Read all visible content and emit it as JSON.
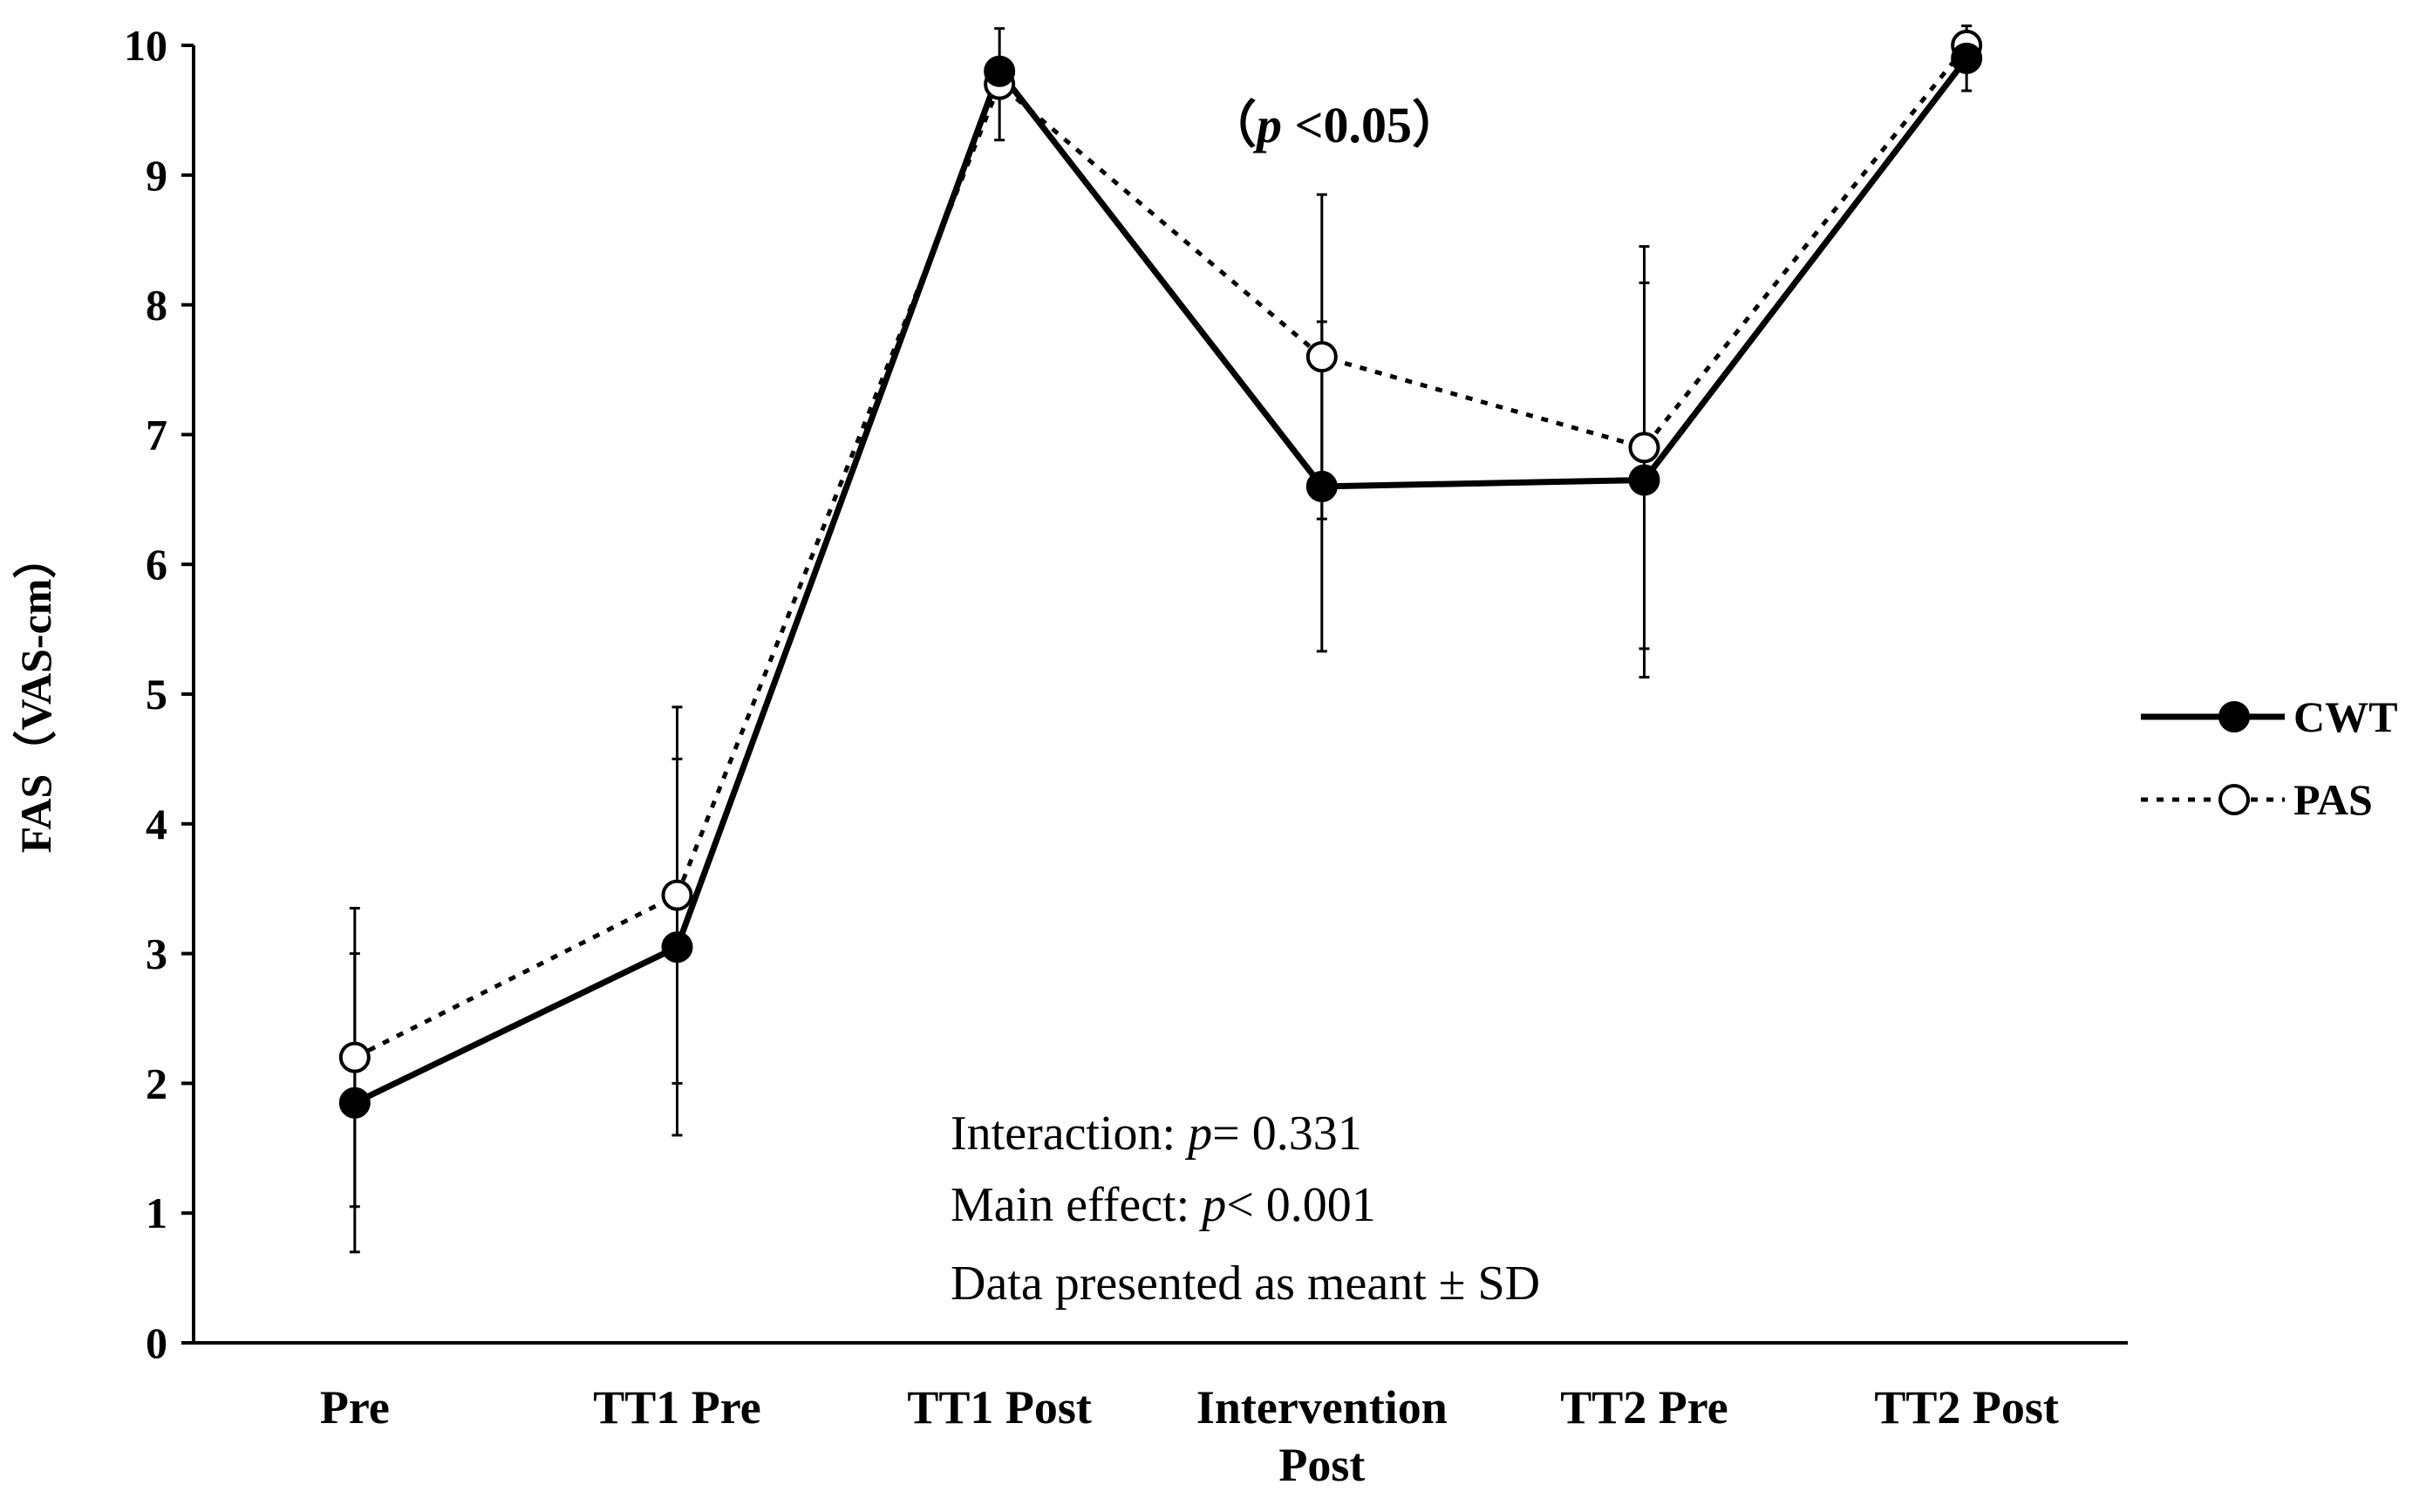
{
  "chart_data": {
    "type": "line",
    "categories": [
      "Pre",
      "TT1 Pre",
      "TT1 Post",
      "Intervention Post",
      "TT2 Pre",
      "TT2 Post"
    ],
    "series": [
      {
        "name": "CWT",
        "style": "solid",
        "marker": "filled-circle",
        "values": [
          1.85,
          3.05,
          9.8,
          6.6,
          6.65,
          9.9
        ],
        "sd": [
          1.15,
          1.45,
          0.0,
          1.27,
          1.52,
          0.25
        ]
      },
      {
        "name": "PAS",
        "style": "dotted",
        "marker": "open-circle",
        "values": [
          2.2,
          3.45,
          9.7,
          7.6,
          6.9,
          10.0
        ],
        "sd": [
          1.15,
          1.45,
          0.43,
          1.25,
          1.55,
          0.0
        ]
      }
    ],
    "ylabel": "FAS（VAS-cm）",
    "ylim": [
      0,
      10
    ],
    "yticks": [
      "0",
      "1",
      "2",
      "3",
      "4",
      "5",
      "6",
      "7",
      "8",
      "9",
      "10"
    ],
    "grid": false,
    "legend_position": "right",
    "annotations": {
      "significance": {
        "open": "（",
        "p": "p",
        "rest": " <0.05）"
      },
      "interaction": {
        "prefix": "Interaction: ",
        "p": "p",
        "value": "= 0.331"
      },
      "main_effect": {
        "prefix": "Main effect: ",
        "p": "p",
        "value": "< 0.001"
      },
      "note": "Data presented as meant ± SD"
    },
    "colors": {
      "line": "#000000",
      "background": "#ffffff"
    }
  }
}
